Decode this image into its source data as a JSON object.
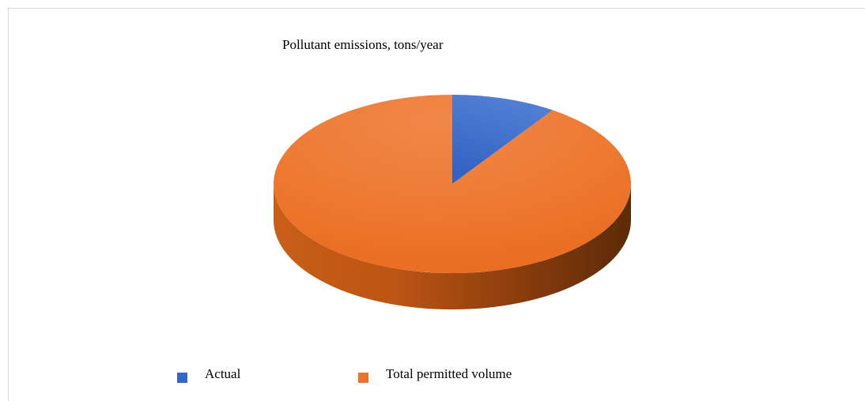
{
  "chart_data": {
    "type": "pie",
    "title": "Pollutant emissions, tons/year",
    "style": "3d",
    "slices": [
      {
        "label": "Actual",
        "value": 9.5,
        "color": "#3366cc"
      },
      {
        "label": "Total permitted volume",
        "value": 90.5,
        "color": "#ef7427"
      }
    ],
    "legend": {
      "position": "bottom"
    }
  }
}
